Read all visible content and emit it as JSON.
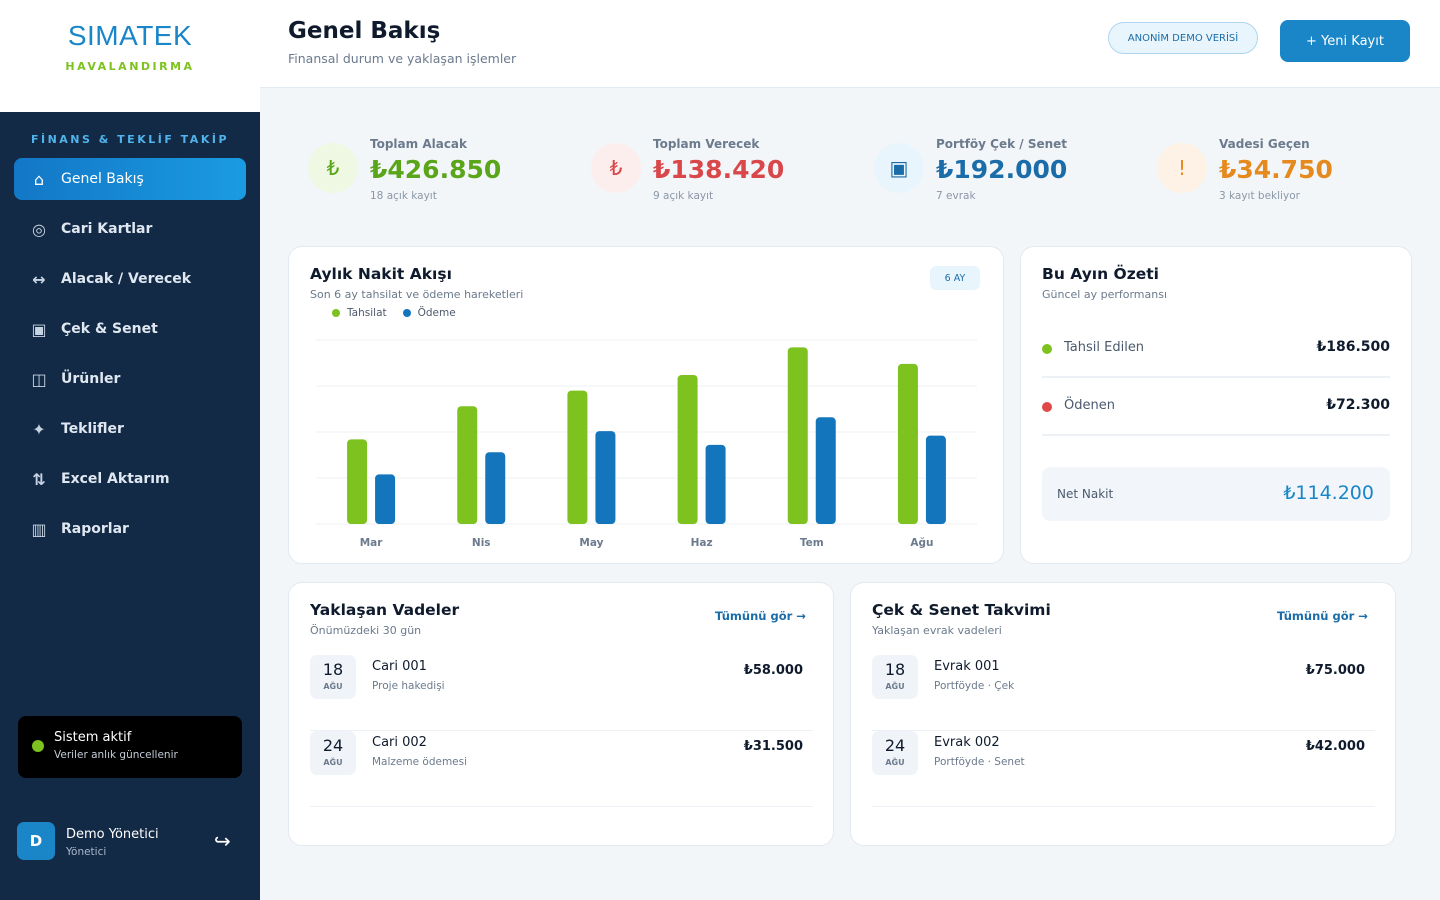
{
  "brand": {
    "name": "SIMATEK",
    "sub": "HAVALANDIRMA"
  },
  "sidebar": {
    "section_title": "FİNANS & TEKLİF TAKİP",
    "items": [
      {
        "label": "Genel Bakış",
        "icon": "home-icon",
        "glyph": "⌂",
        "active": true
      },
      {
        "label": "Cari Kartlar",
        "icon": "target-icon",
        "glyph": "◎",
        "active": false
      },
      {
        "label": "Alacak / Verecek",
        "icon": "swap-icon",
        "glyph": "↔",
        "active": false
      },
      {
        "label": "Çek & Senet",
        "icon": "document-icon",
        "glyph": "▣",
        "active": false
      },
      {
        "label": "Ürünler",
        "icon": "box-icon",
        "glyph": "◫",
        "active": false
      },
      {
        "label": "Teklifler",
        "icon": "sparkle-icon",
        "glyph": "✦",
        "active": false
      },
      {
        "label": "Excel Aktarım",
        "icon": "transfer-icon",
        "glyph": "⇅",
        "active": false
      },
      {
        "label": "Raporlar",
        "icon": "report-icon",
        "glyph": "▥",
        "active": false
      }
    ],
    "status": {
      "title": "Sistem aktif",
      "sub": "Veriler anlık güncellenir",
      "color": "#7dc21e"
    },
    "user": {
      "initial": "D",
      "name": "Demo Yönetici",
      "role": "Yönetici"
    }
  },
  "header": {
    "title": "Genel Bakış",
    "subtitle": "Finansal durum ve yaklaşan işlemler",
    "badge": "ANONİM DEMO VERİSİ",
    "new_button": "+ Yeni Kayıt"
  },
  "kpis": [
    {
      "label": "Toplam Alacak",
      "value": "₺426.850",
      "sub": "18 açık kayıt",
      "glyph": "₺",
      "icon": "lira-icon",
      "color": "#5aa51a",
      "bg": "#eef8e2"
    },
    {
      "label": "Toplam Verecek",
      "value": "₺138.420",
      "sub": "9 açık kayıt",
      "glyph": "₺",
      "icon": "lira-icon",
      "color": "#d9474a",
      "bg": "#fdeeee"
    },
    {
      "label": "Portföy Çek / Senet",
      "value": "₺192.000",
      "sub": "7 evrak",
      "glyph": "▣",
      "icon": "document-icon",
      "color": "#1a6da8",
      "bg": "#e9f5fd"
    },
    {
      "label": "Vadesi Geçen",
      "value": "₺34.750",
      "sub": "3 kayıt bekliyor",
      "glyph": "!",
      "icon": "warning-icon",
      "color": "#e58a1f",
      "bg": "#fdf2e5"
    }
  ],
  "cashflow": {
    "title": "Aylık Nakit Akışı",
    "subtitle": "Son 6 ay tahsilat ve ödeme hareketleri",
    "range": "6 AY"
  },
  "chart_data": {
    "type": "bar",
    "categories": [
      "Mar",
      "Nis",
      "May",
      "Haz",
      "Tem",
      "Ağu"
    ],
    "series": [
      {
        "name": "Tahsilat",
        "color": "#7dc21e",
        "values": [
          92,
          128,
          145,
          162,
          192,
          174
        ]
      },
      {
        "name": "Ödeme",
        "color": "#1376bd",
        "values": [
          54,
          78,
          101,
          86,
          116,
          96
        ]
      }
    ],
    "ylim": [
      0,
      200
    ],
    "grid": true,
    "legend": "top-left"
  },
  "summary": {
    "title": "Bu Ayın Özeti",
    "subtitle": "Güncel ay performansı",
    "rows": [
      {
        "label": "Tahsil Edilen",
        "value": "₺186.500",
        "color": "#7dc21e"
      },
      {
        "label": "Ödenen",
        "value": "₺72.300",
        "color": "#e04848"
      }
    ],
    "net_label": "Net Nakit",
    "net_value": "₺114.200"
  },
  "upcoming": {
    "title": "Yaklaşan Vadeler",
    "subtitle": "Önümüzdeki 30 gün",
    "link": "Tümünü gör →",
    "rows": [
      {
        "day": "18",
        "month": "AĞU",
        "title": "Cari 001",
        "sub": "Proje hakedişi",
        "amount": "₺58.000"
      },
      {
        "day": "24",
        "month": "AĞU",
        "title": "Cari 002",
        "sub": "Malzeme ödemesi",
        "amount": "₺31.500"
      }
    ]
  },
  "cheques": {
    "title": "Çek & Senet Takvimi",
    "subtitle": "Yaklaşan evrak vadeleri",
    "link": "Tümünü gör →",
    "rows": [
      {
        "day": "18",
        "month": "AĞU",
        "title": "Evrak 001",
        "sub": "Portföyde · Çek",
        "amount": "₺75.000"
      },
      {
        "day": "24",
        "month": "AĞU",
        "title": "Evrak 002",
        "sub": "Portföyde · Senet",
        "amount": "₺42.000"
      }
    ]
  }
}
